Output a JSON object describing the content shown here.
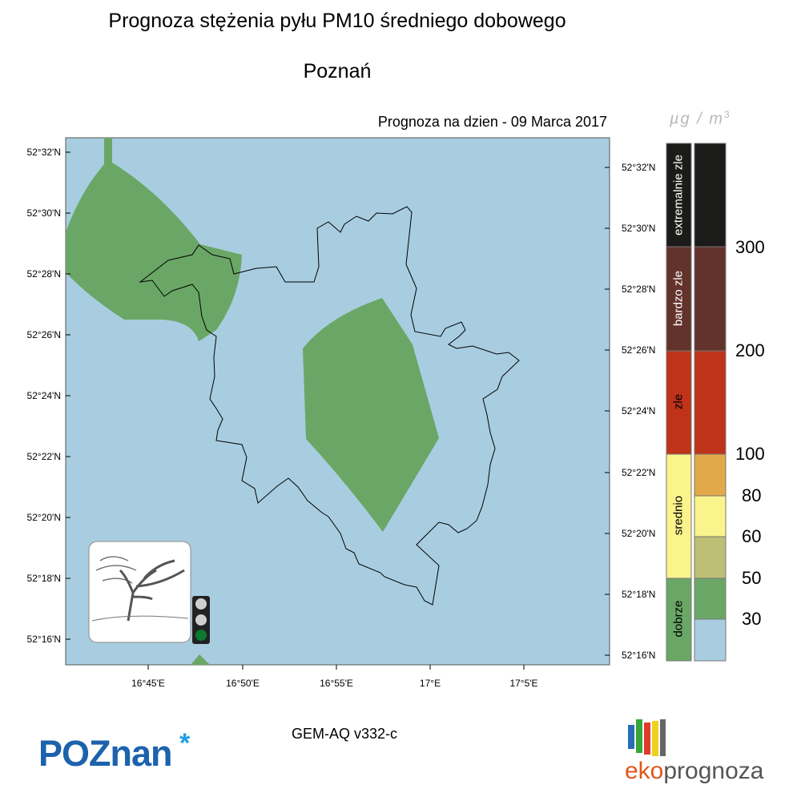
{
  "title": "Prognoza stężenia pyłu PM10 średniego dobowego",
  "city": "Poznań",
  "forecast_label": "Prognoza na dzien -  09 Marca 2017",
  "unit": {
    "main": "µg / m",
    "exp": "3"
  },
  "lat_ticks_left": [
    "52°32'N",
    "52°30'N",
    "52°28'N",
    "52°26'N",
    "52°24'N",
    "52°22'N",
    "52°20'N",
    "52°18'N",
    "52°16'N"
  ],
  "lat_ticks_right": [
    "52°32'N",
    "52°30'N",
    "52°28'N",
    "52°26'N",
    "52°24'N",
    "52°22'N",
    "52°20'N",
    "52°18'N",
    "52°16'N"
  ],
  "lon_ticks": [
    "16°45'E",
    "16°50'E",
    "16°55'E",
    "17°E",
    "17°5'E"
  ],
  "categories": [
    "extremalnie zle",
    "bardzo zle",
    "zle",
    "srednio",
    "dobrze"
  ],
  "legend_values": [
    "300",
    "200",
    "100",
    "80",
    "60",
    "50",
    "30"
  ],
  "model": "GEM-AQ v332-c",
  "logo_poznan": {
    "text": "POZnan",
    "star": "*"
  },
  "logo_eko": {
    "part1": "eko",
    "part2": "prognoza"
  },
  "colors": {
    "background_clean": "#a8cde0",
    "good": "#6aa766",
    "moderate_light": "#fbf38c",
    "olive": "#bdbf76",
    "orange": "#e2a94a",
    "bad": "#bf331b",
    "very_bad": "#63322b",
    "extreme": "#1b1b19"
  },
  "traffic_light": {
    "red": "off",
    "yellow": "off",
    "green": "on"
  },
  "icons": [
    "wind-tree-icon",
    "traffic-light-icon"
  ]
}
